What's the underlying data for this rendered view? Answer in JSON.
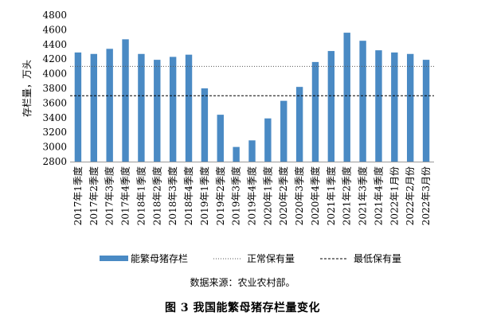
{
  "chart_data": {
    "type": "bar",
    "title": "图 3 我国能繁母猪存栏量变化",
    "source": "数据来源：农业农村部。",
    "ylabel": "存栏量，万头",
    "ylim": [
      2800,
      4800
    ],
    "yticks": [
      2800,
      3000,
      3200,
      3400,
      3600,
      3800,
      4000,
      4200,
      4400,
      4600,
      4800
    ],
    "categories": [
      "2017年1季度",
      "2017年2季度",
      "2017年3季度",
      "2017年4季度",
      "2018年1季度",
      "2018年2季度",
      "2018年3季度",
      "2018年4季度",
      "2019年1季度",
      "2019年2季度",
      "2019年3季度",
      "2019年4季度",
      "2020年1季度",
      "2020年2季度",
      "2020年3季度",
      "2020年4季度",
      "2021年1季度",
      "2021年2季度",
      "2021年3季度",
      "2021年4季度",
      "2022年1月份",
      "2022年2月份",
      "2022年3月份"
    ],
    "series": [
      {
        "name": "能繁母猪存栏",
        "color": "#4a8ac4",
        "values": [
          4290,
          4270,
          4340,
          4470,
          4270,
          4190,
          4230,
          4260,
          3800,
          3440,
          3000,
          3090,
          3390,
          3630,
          3820,
          4160,
          4310,
          4560,
          4450,
          4320,
          4290,
          4270,
          4190
        ]
      }
    ],
    "reference_lines": [
      {
        "name": "正常保有量",
        "value": 4100,
        "style": "dotted",
        "color": "#555555"
      },
      {
        "name": "最低保有量",
        "value": 3700,
        "style": "dashed",
        "color": "#000000"
      }
    ],
    "grid": false,
    "legend": "bottom"
  }
}
